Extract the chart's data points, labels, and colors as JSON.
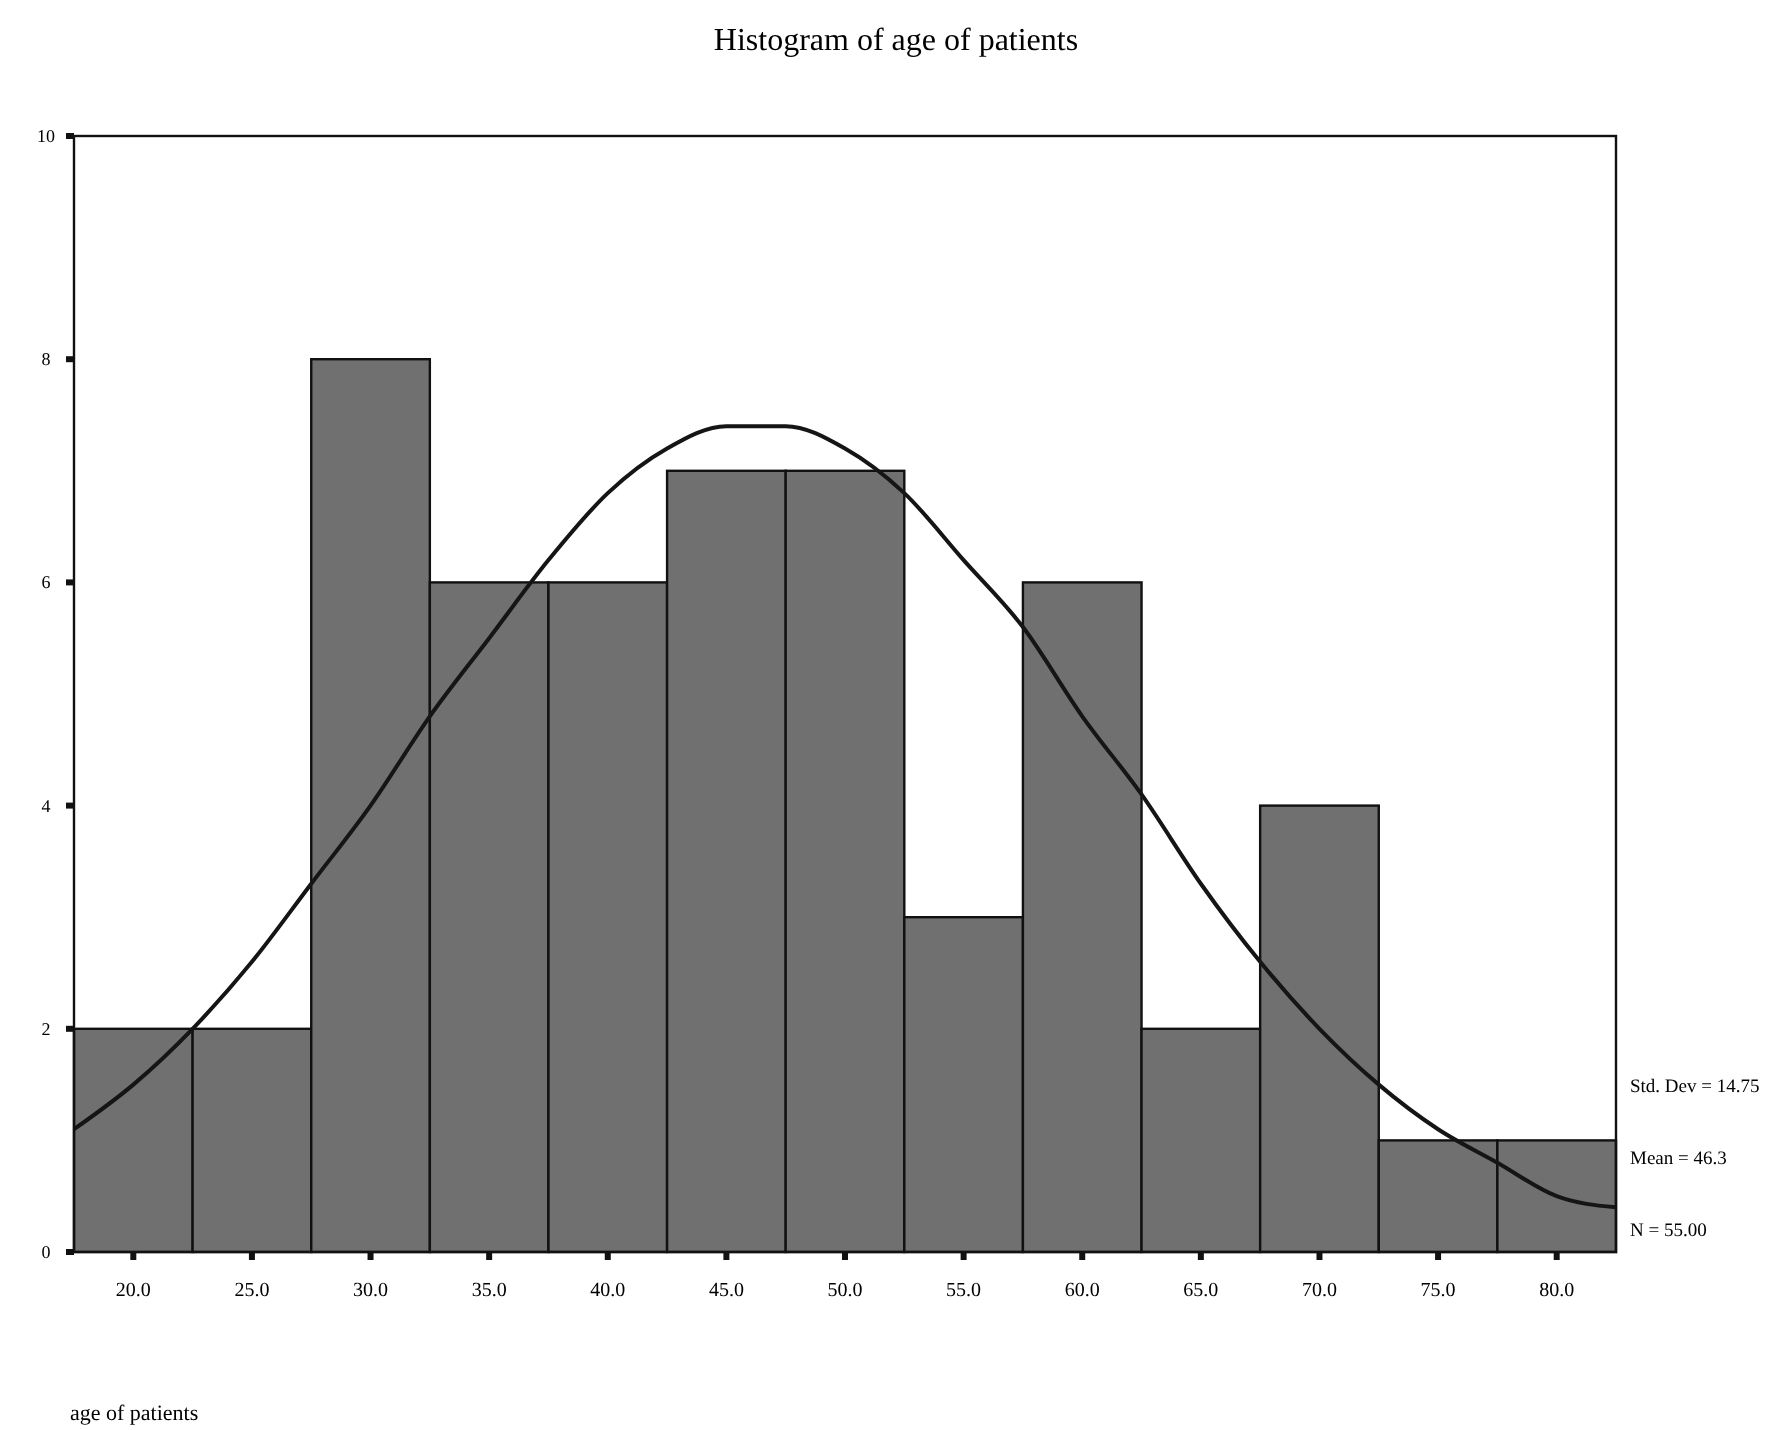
{
  "chart_data": {
    "type": "histogram",
    "title": "Histogram of age of patients",
    "xlabel": "age of patients",
    "bins": [
      17.5,
      22.5,
      27.5,
      32.5,
      37.5,
      42.5,
      47.5,
      52.5,
      57.5,
      62.5,
      67.5,
      72.5,
      77.5,
      82.5
    ],
    "values": [
      2,
      2,
      8,
      6,
      6,
      7,
      7,
      3,
      6,
      2,
      4,
      1,
      1
    ],
    "color": "#707070",
    "series": [
      {
        "type": "line",
        "color": "#151515",
        "x": [
          17.5,
          20,
          22.5,
          25,
          27.5,
          30,
          32.5,
          35,
          37.5,
          40,
          42.5,
          45,
          46.3,
          47.5,
          50,
          52.5,
          55,
          57.5,
          60,
          62.5,
          65,
          67.5,
          70,
          72.5,
          75,
          77.5,
          80,
          82.5
        ],
        "values": [
          1.1,
          1.5,
          2.0,
          2.6,
          3.3,
          4.0,
          4.8,
          5.5,
          6.2,
          6.8,
          7.2,
          7.4,
          7.4,
          7.4,
          7.2,
          6.8,
          6.2,
          5.6,
          4.8,
          4.1,
          3.3,
          2.6,
          2.0,
          1.5,
          1.1,
          0.8,
          0.5,
          0.4
        ]
      }
    ],
    "xlim": [
      17.5,
      82.5
    ],
    "xticks": [
      {
        "value": 20,
        "label": "20.0"
      },
      {
        "value": 25,
        "label": "25.0"
      },
      {
        "value": 30,
        "label": "30.0"
      },
      {
        "value": 35,
        "label": "35.0"
      },
      {
        "value": 40,
        "label": "40.0"
      },
      {
        "value": 45,
        "label": "45.0"
      },
      {
        "value": 50,
        "label": "50.0"
      },
      {
        "value": 55,
        "label": "55.0"
      },
      {
        "value": 60,
        "label": "60.0"
      },
      {
        "value": 65,
        "label": "65.0"
      },
      {
        "value": 70,
        "label": "70.0"
      },
      {
        "value": 75,
        "label": "75.0"
      },
      {
        "value": 80,
        "label": "80.0"
      }
    ],
    "ylim": [
      0,
      10
    ],
    "yticks": [
      0,
      2,
      4,
      6,
      8,
      10
    ],
    "annotations": [
      "Std. Dev = 14.75",
      "Mean = 46.3",
      "N = 55.00"
    ]
  }
}
